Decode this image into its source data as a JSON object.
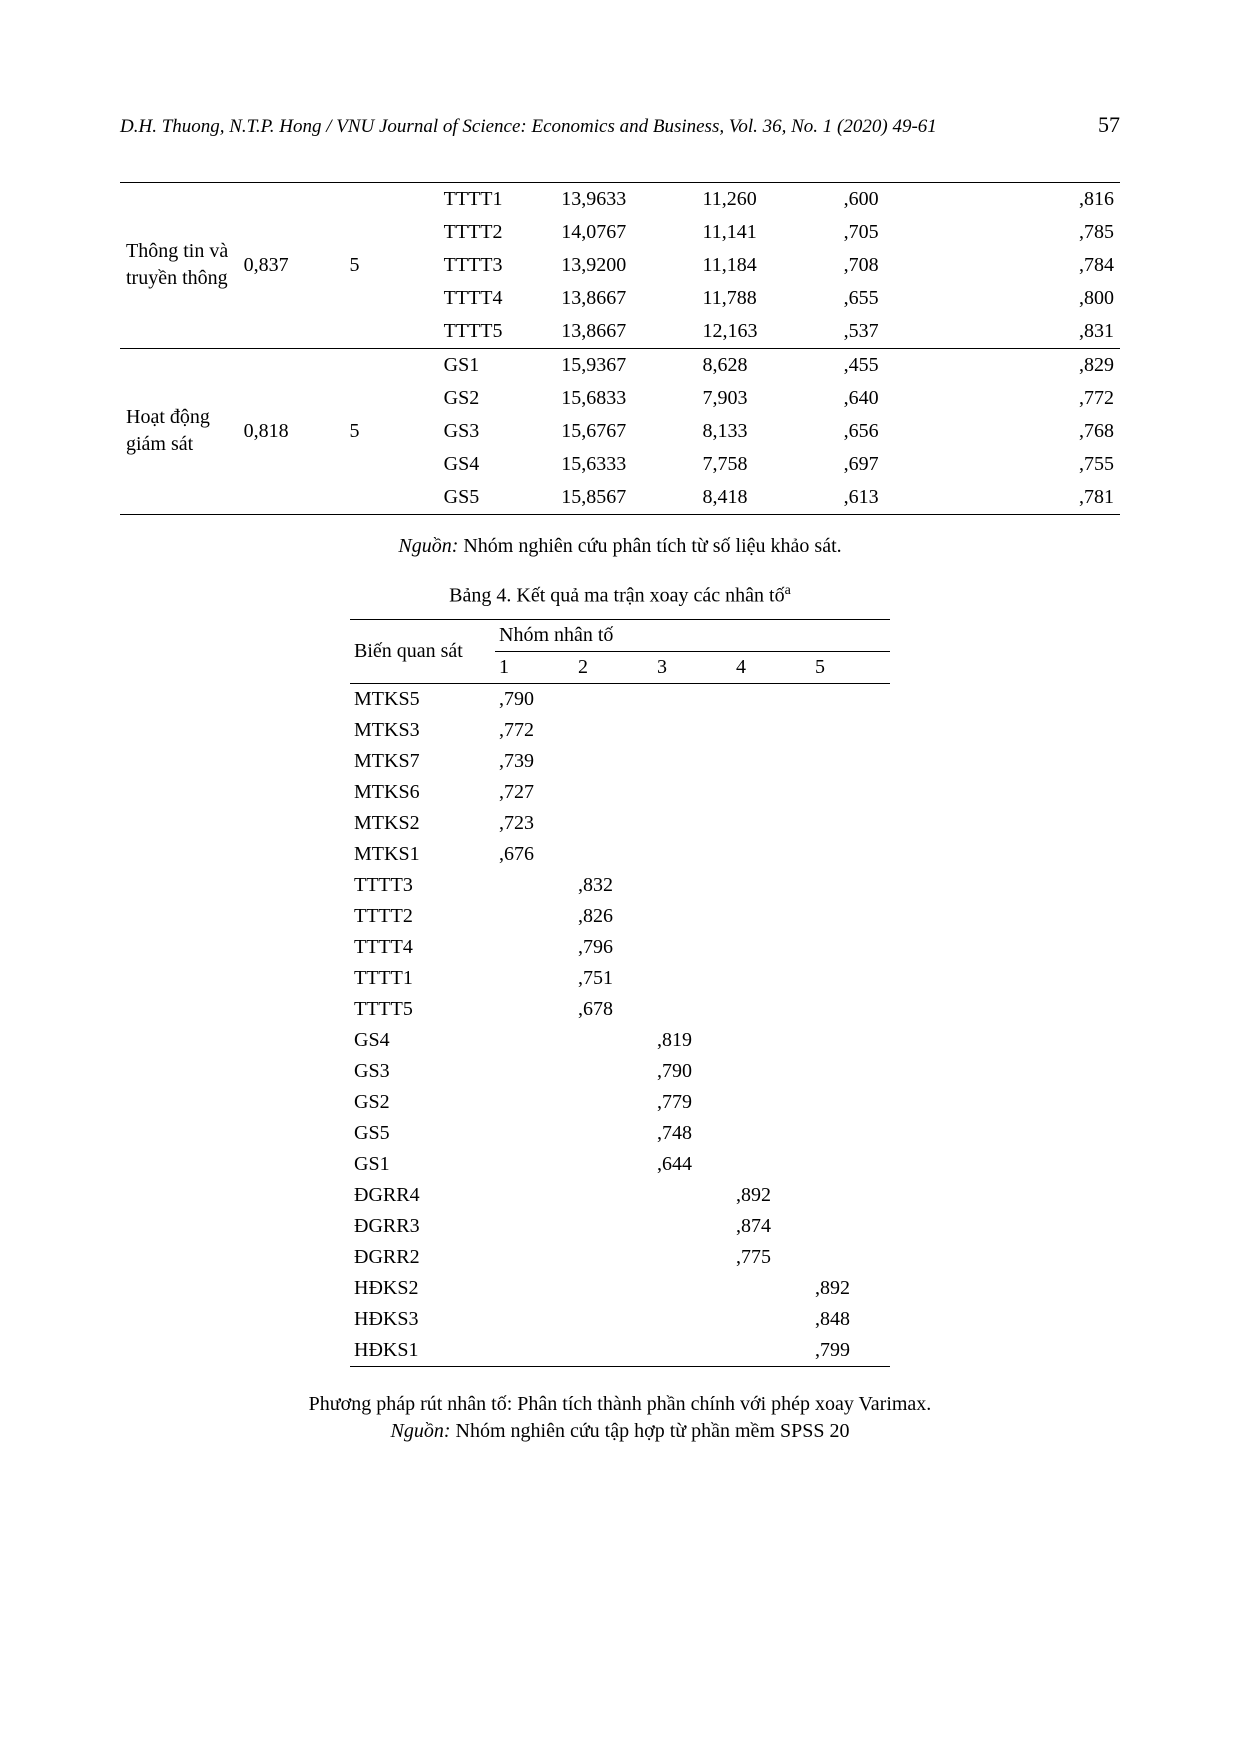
{
  "header": {
    "citation": "D.H. Thuong, N.T.P. Hong / VNU Journal of Science: Economics and Business, Vol. 36, No. 1 (2020) 49-61",
    "page": "57"
  },
  "table1": {
    "groups": [
      {
        "label": "Thông tin và truyền thông",
        "val2": "0,837",
        "val3": "5",
        "rows": [
          {
            "code": "TTTT1",
            "c5": "13,9633",
            "c6": "11,260",
            "c7": ",600",
            "c8": ",816"
          },
          {
            "code": "TTTT2",
            "c5": "14,0767",
            "c6": "11,141",
            "c7": ",705",
            "c8": ",785"
          },
          {
            "code": "TTTT3",
            "c5": "13,9200",
            "c6": "11,184",
            "c7": ",708",
            "c8": ",784"
          },
          {
            "code": "TTTT4",
            "c5": "13,8667",
            "c6": "11,788",
            "c7": ",655",
            "c8": ",800"
          },
          {
            "code": "TTTT5",
            "c5": "13,8667",
            "c6": "12,163",
            "c7": ",537",
            "c8": ",831"
          }
        ]
      },
      {
        "label": "Hoạt động giám sát",
        "val2": "0,818",
        "val3": "5",
        "rows": [
          {
            "code": "GS1",
            "c5": "15,9367",
            "c6": "8,628",
            "c7": ",455",
            "c8": ",829"
          },
          {
            "code": "GS2",
            "c5": "15,6833",
            "c6": "7,903",
            "c7": ",640",
            "c8": ",772"
          },
          {
            "code": "GS3",
            "c5": "15,6767",
            "c6": "8,133",
            "c7": ",656",
            "c8": ",768"
          },
          {
            "code": "GS4",
            "c5": "15,6333",
            "c6": "7,758",
            "c7": ",697",
            "c8": ",755"
          },
          {
            "code": "GS5",
            "c5": "15,8567",
            "c6": "8,418",
            "c7": ",613",
            "c8": ",781"
          }
        ]
      }
    ],
    "source_label": "Nguồn:",
    "source_text": " Nhóm nghiên cứu phân tích từ số liệu khảo sát."
  },
  "table4": {
    "caption_prefix": "Bảng 4. Kết quả ma trận xoay các nhân tố",
    "caption_sup": "a",
    "col1_header": "Biến quan sát",
    "group_header": "Nhóm nhân tố",
    "cols": [
      "1",
      "2",
      "3",
      "4",
      "5"
    ],
    "rows": [
      {
        "name": "MTKS5",
        "vals": [
          ",790",
          "",
          "",
          "",
          ""
        ],
        "cls": ""
      },
      {
        "name": "MTKS3",
        "vals": [
          ",772",
          "",
          "",
          "",
          ""
        ],
        "cls": ""
      },
      {
        "name": "MTKS7",
        "vals": [
          ",739",
          "",
          "",
          "",
          ""
        ],
        "cls": ""
      },
      {
        "name": "MTKS6",
        "vals": [
          ",727",
          "",
          "",
          "",
          ""
        ],
        "cls": ""
      },
      {
        "name": "MTKS2",
        "vals": [
          ",723",
          "",
          "",
          "",
          ""
        ],
        "cls": ""
      },
      {
        "name": "MTKS1",
        "vals": [
          ",676",
          "",
          "",
          "",
          ""
        ],
        "cls": ""
      },
      {
        "name": "TTTT3",
        "vals": [
          "",
          ",832",
          "",
          "",
          ""
        ],
        "cls": ""
      },
      {
        "name": "TTTT2",
        "vals": [
          "",
          ",826",
          "",
          "",
          ""
        ],
        "cls": ""
      },
      {
        "name": "TTTT4",
        "vals": [
          "",
          ",796",
          "",
          "",
          ""
        ],
        "cls": ""
      },
      {
        "name": "TTTT1",
        "vals": [
          "",
          ",751",
          "",
          "",
          ""
        ],
        "cls": ""
      },
      {
        "name": "TTTT5",
        "vals": [
          "",
          ",678",
          "",
          "",
          ""
        ],
        "cls": ""
      },
      {
        "name": "GS4",
        "vals": [
          "",
          "",
          ",819",
          "",
          ""
        ],
        "cls": "gs-rows"
      },
      {
        "name": "GS3",
        "vals": [
          "",
          "",
          ",790",
          "",
          ""
        ],
        "cls": "gs-rows"
      },
      {
        "name": "GS2",
        "vals": [
          "",
          "",
          ",779",
          "",
          ""
        ],
        "cls": "gs-rows"
      },
      {
        "name": "GS5",
        "vals": [
          "",
          "",
          ",748",
          "",
          ""
        ],
        "cls": "gs-rows"
      },
      {
        "name": "GS1",
        "vals": [
          "",
          "",
          ",644",
          "",
          ""
        ],
        "cls": "gs-rows"
      },
      {
        "name": "ĐGRR4",
        "vals": [
          "",
          "",
          "",
          ",892",
          ""
        ],
        "cls": "gs-rows"
      },
      {
        "name": "ĐGRR3",
        "vals": [
          "",
          "",
          "",
          ",874",
          ""
        ],
        "cls": "gs-rows"
      },
      {
        "name": "ĐGRR2",
        "vals": [
          "",
          "",
          "",
          ",775",
          ""
        ],
        "cls": "gs-rows"
      },
      {
        "name": "HĐKS2",
        "vals": [
          "",
          "",
          "",
          "",
          ",892"
        ],
        "cls": "gs-rows"
      },
      {
        "name": "HĐKS3",
        "vals": [
          "",
          "",
          "",
          "",
          ",848"
        ],
        "cls": "gs-rows"
      },
      {
        "name": "HĐKS1",
        "vals": [
          "",
          "",
          "",
          "",
          ",799"
        ],
        "cls": "gs-rows"
      }
    ],
    "footer_line1": "Phương pháp rút nhân tố: Phân tích thành phần chính với phép xoay Varimax.",
    "footer_src_label": "Nguồn:",
    "footer_src_text": " Nhóm nghiên cứu tập hợp từ phần mềm SPSS 20"
  }
}
